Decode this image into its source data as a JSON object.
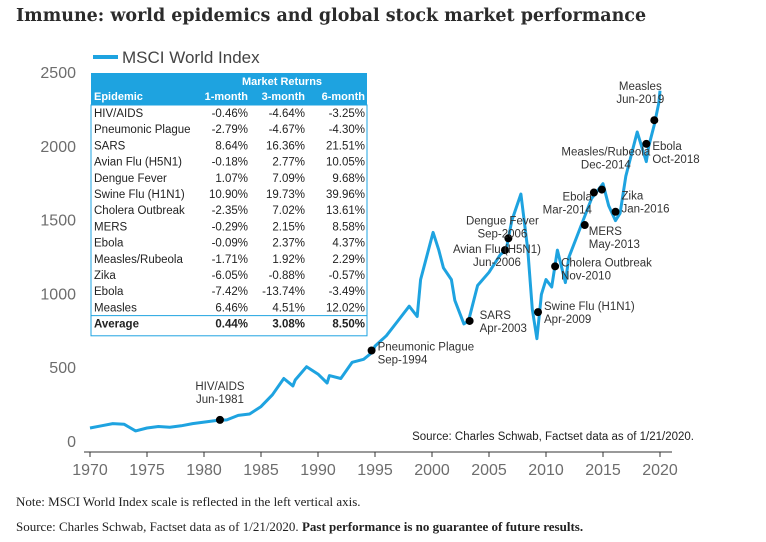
{
  "heading": "Immune: world epidemics and global stock market performance",
  "notes": {
    "line1": "Note: MSCI World Index scale is reflected in the left vertical axis.",
    "line2_plain": "Source: Charles Schwab, Factset data as of 1/21/2020. ",
    "line2_bold": "Past performance is no guarantee of future results."
  },
  "colors": {
    "line": "#1ea3e0",
    "table_header": "#1ea3e0",
    "event_marker": "#000000",
    "axis": "#333333"
  },
  "chart_data": {
    "type": "line",
    "title": "Immune: world epidemics and global stock market performance",
    "xlabel": "",
    "ylabel": "",
    "xlim": [
      1970,
      2020
    ],
    "ylim": [
      0,
      2500
    ],
    "x_ticks": [
      1970,
      1975,
      1980,
      1985,
      1990,
      1995,
      2000,
      2005,
      2010,
      2015,
      2020
    ],
    "y_ticks": [
      0,
      500,
      1000,
      1500,
      2000,
      2500
    ],
    "grid": false,
    "legend": "top-left",
    "source_note": "Source: Charles Schwab, Factset data as of 1/21/2020.",
    "series": [
      {
        "name": "MSCI World Index",
        "x": [
          1970,
          1971,
          1972,
          1973,
          1974,
          1975,
          1976,
          1977,
          1978,
          1979,
          1980,
          1981,
          1982,
          1983,
          1984,
          1985,
          1986,
          1987,
          1987.8,
          1988,
          1989,
          1990,
          1990.8,
          1991,
          1992,
          1993,
          1994,
          1994.8,
          1995,
          1996,
          1997,
          1998,
          1998.7,
          1999,
          2000.1,
          2000.6,
          2001,
          2001.7,
          2002,
          2002.8,
          2003.2,
          2003.8,
          2004,
          2005,
          2006,
          2006.5,
          2007,
          2007.8,
          2008.4,
          2008.8,
          2009.2,
          2009.6,
          2010,
          2010.5,
          2011,
          2011.7,
          2012,
          2013,
          2014,
          2014.5,
          2015,
          2015.5,
          2016.1,
          2016.5,
          2017,
          2018,
          2018.8,
          2019,
          2019.5,
          2019.9,
          2020
        ],
        "y": [
          95,
          110,
          125,
          120,
          75,
          95,
          105,
          100,
          110,
          125,
          135,
          145,
          150,
          180,
          190,
          240,
          320,
          430,
          380,
          420,
          510,
          460,
          400,
          450,
          430,
          540,
          560,
          610,
          650,
          720,
          820,
          920,
          850,
          1100,
          1420,
          1300,
          1180,
          1100,
          960,
          800,
          820,
          1000,
          1060,
          1150,
          1270,
          1300,
          1500,
          1680,
          1300,
          900,
          700,
          1000,
          1100,
          1050,
          1300,
          1080,
          1250,
          1450,
          1650,
          1700,
          1750,
          1600,
          1500,
          1550,
          1800,
          2100,
          1900,
          2000,
          2150,
          2300,
          2380
        ]
      }
    ],
    "events": [
      {
        "label": "HIV/AIDS",
        "date": "Jun-1981",
        "x": 1981.4,
        "y": 150
      },
      {
        "label": "Pneumonic Plague",
        "date": "Sep-1994",
        "x": 1994.7,
        "y": 620
      },
      {
        "label": "SARS",
        "date": "Apr-2003",
        "x": 2003.3,
        "y": 820
      },
      {
        "label": "Avian Flu (H5N1)",
        "date": "Jun-2006",
        "x": 2006.4,
        "y": 1300
      },
      {
        "label": "Dengue Fever",
        "date": "Sep-2006",
        "x": 2006.7,
        "y": 1380
      },
      {
        "label": "Swine Flu (H1N1)",
        "date": "Apr-2009",
        "x": 2009.3,
        "y": 880
      },
      {
        "label": "Cholera Outbreak",
        "date": "Nov-2010",
        "x": 2010.8,
        "y": 1190
      },
      {
        "label": "MERS",
        "date": "May-2013",
        "x": 2013.4,
        "y": 1470
      },
      {
        "label": "Ebola",
        "date": "Mar-2014",
        "x": 2014.2,
        "y": 1690
      },
      {
        "label": "Measles/Rubeola",
        "date": "Dec-2014",
        "x": 2014.9,
        "y": 1710
      },
      {
        "label": "Zika",
        "date": "Jan-2016",
        "x": 2016.1,
        "y": 1560
      },
      {
        "label": "Ebola",
        "date": "Oct-2018",
        "x": 2018.8,
        "y": 2020
      },
      {
        "label": "Measles",
        "date": "Jun-2019",
        "x": 2019.5,
        "y": 2180
      }
    ],
    "table": {
      "title": "Market Returns",
      "columns": [
        "Epidemic",
        "1-month",
        "3-month",
        "6-month"
      ],
      "rows": [
        [
          "HIV/AIDS",
          "-0.46%",
          "-4.64%",
          "-3.25%"
        ],
        [
          "Pneumonic Plague",
          "-2.79%",
          "-4.67%",
          "-4.30%"
        ],
        [
          "SARS",
          "8.64%",
          "16.36%",
          "21.51%"
        ],
        [
          "Avian Flu (H5N1)",
          "-0.18%",
          "2.77%",
          "10.05%"
        ],
        [
          "Dengue Fever",
          "1.07%",
          "7.09%",
          "9.68%"
        ],
        [
          "Swine Flu (H1N1)",
          "10.90%",
          "19.73%",
          "39.96%"
        ],
        [
          "Cholera Outbreak",
          "-2.35%",
          "7.02%",
          "13.61%"
        ],
        [
          "MERS",
          "-0.29%",
          "2.15%",
          "8.58%"
        ],
        [
          "Ebola",
          "-0.09%",
          "2.37%",
          "4.37%"
        ],
        [
          "Measles/Rubeola",
          "-1.71%",
          "1.92%",
          "2.29%"
        ],
        [
          "Zika",
          "-6.05%",
          "-0.88%",
          "-0.57%"
        ],
        [
          "Ebola",
          "-7.42%",
          "-13.74%",
          "-3.49%"
        ],
        [
          "Measles",
          "6.46%",
          "4.51%",
          "12.02%"
        ]
      ],
      "average": [
        "Average",
        "0.44%",
        "3.08%",
        "8.50%"
      ]
    }
  }
}
